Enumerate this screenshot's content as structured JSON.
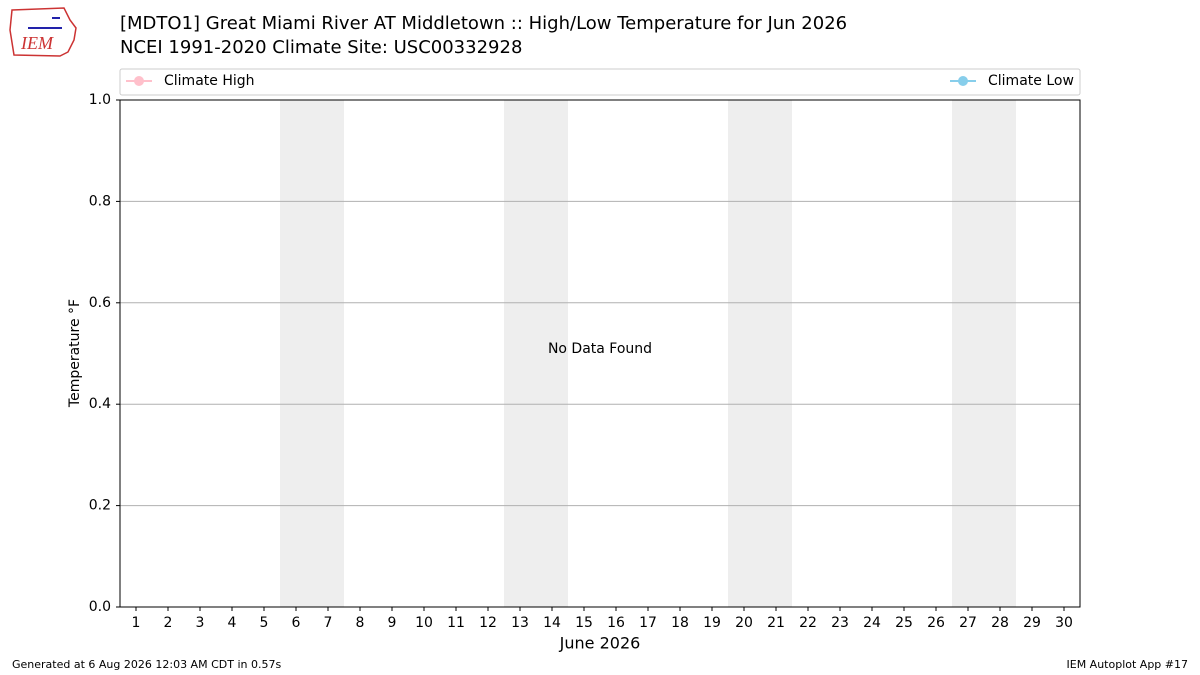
{
  "logo": "IEM",
  "footer_left": "Generated at 6 Aug 2026 12:03 AM CDT in 0.57s",
  "footer_right": "IEM Autoplot App #17",
  "chart_data": {
    "type": "line",
    "title": "[MDTO1] Great Miami River  AT Middletown :: High/Low Temperature for Jun 2026",
    "subtitle": "NCEI 1991-2020 Climate Site: USC00332928",
    "x_label": "June 2026",
    "y_label": "Temperature °F",
    "annotation": "No Data Found",
    "x": [
      1,
      2,
      3,
      4,
      5,
      6,
      7,
      8,
      9,
      10,
      11,
      12,
      13,
      14,
      15,
      16,
      17,
      18,
      19,
      20,
      21,
      22,
      23,
      24,
      25,
      26,
      27,
      28,
      29,
      30
    ],
    "xlim": [
      0.5,
      30.5
    ],
    "xticks": [
      1,
      2,
      3,
      4,
      5,
      6,
      7,
      8,
      9,
      10,
      11,
      12,
      13,
      14,
      15,
      16,
      17,
      18,
      19,
      20,
      21,
      22,
      23,
      24,
      25,
      26,
      27,
      28,
      29,
      30
    ],
    "ylim": [
      0,
      1
    ],
    "yticks": [
      {
        "value": 0,
        "label": "0.0"
      },
      {
        "value": 0.2,
        "label": "0.2"
      },
      {
        "value": 0.4,
        "label": "0.4"
      },
      {
        "value": 0.6,
        "label": "0.6"
      },
      {
        "value": 0.8,
        "label": "0.8"
      },
      {
        "value": 1,
        "label": "1.0"
      }
    ],
    "grid": true,
    "series": [
      {
        "name": "Climate High",
        "color": "#ffc0cb",
        "legend": "upper left",
        "values": [
          null,
          null,
          null,
          null,
          null,
          null,
          null,
          null,
          null,
          null,
          null,
          null,
          null,
          null,
          null,
          null,
          null,
          null,
          null,
          null,
          null,
          null,
          null,
          null,
          null,
          null,
          null,
          null,
          null,
          null
        ]
      },
      {
        "name": "Climate Low",
        "color": "#87ceeb",
        "legend": "upper right",
        "values": [
          null,
          null,
          null,
          null,
          null,
          null,
          null,
          null,
          null,
          null,
          null,
          null,
          null,
          null,
          null,
          null,
          null,
          null,
          null,
          null,
          null,
          null,
          null,
          null,
          null,
          null,
          null,
          null,
          null,
          null
        ]
      }
    ]
  }
}
